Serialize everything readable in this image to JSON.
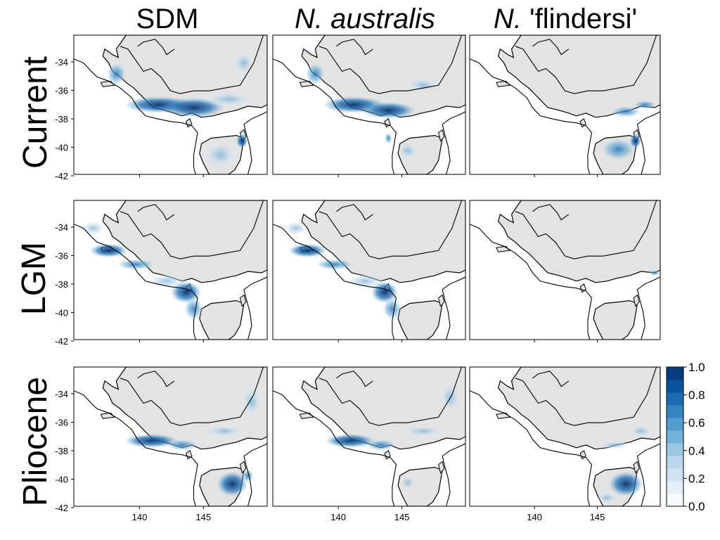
{
  "columns": [
    {
      "id": "sdm",
      "label": "SDM",
      "italic_prefix": "",
      "suffix": "SDM"
    },
    {
      "id": "n_australis",
      "label": "N. australis",
      "italic_prefix": "N. australis",
      "suffix": ""
    },
    {
      "id": "n_flindersi",
      "label": "N. 'flindersi'",
      "italic_prefix": "N.",
      "suffix": " 'flindersi'"
    }
  ],
  "rows": [
    {
      "id": "current",
      "label": "Current"
    },
    {
      "id": "lgm",
      "label": "LGM"
    },
    {
      "id": "pliocene",
      "label": "Pliocene"
    }
  ],
  "axes": {
    "lat_ticks": [
      "-34",
      "-36",
      "-38",
      "-40",
      "-42"
    ],
    "lon_ticks": [
      "140",
      "145"
    ]
  },
  "legend": {
    "ticks": [
      "1.0",
      "0.8",
      "0.6",
      "0.4",
      "0.2",
      "0.0"
    ],
    "colors": [
      "#f7fbff",
      "#e4eff9",
      "#d0e1f2",
      "#bad6eb",
      "#9ac8e0",
      "#73b2d8",
      "#529dcc",
      "#3585bf",
      "#1d6cb1",
      "#08519c",
      "#083c7d"
    ]
  },
  "style": {
    "land_color": "#e3e3e3",
    "sea_color": "#ffffff",
    "coast_color": "#000000"
  }
}
